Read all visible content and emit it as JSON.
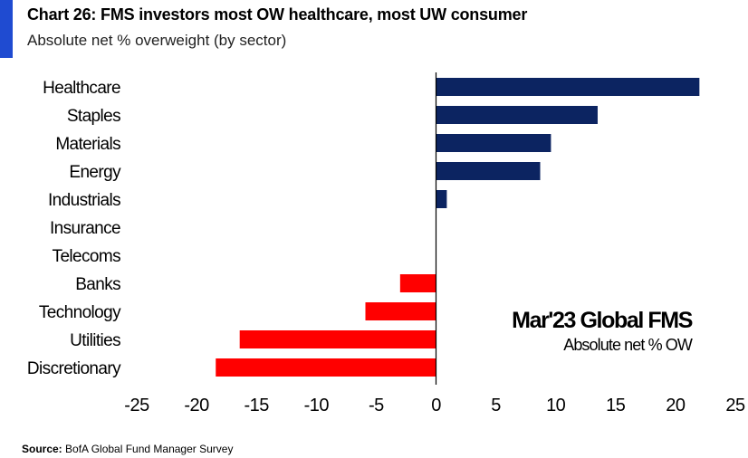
{
  "header": {
    "title": "Chart 26: FMS investors most OW healthcare, most UW consumer",
    "subtitle": "Absolute net % overweight (by sector)",
    "accent_color": "#1f4bd1"
  },
  "annotation": {
    "title": "Mar'23 Global FMS",
    "subtitle": "Absolute net % OW"
  },
  "source": {
    "label": "Source:",
    "text": " BofA Global Fund Manager Survey"
  },
  "chart_data": {
    "type": "bar",
    "orientation": "horizontal",
    "categories": [
      "Healthcare",
      "Staples",
      "Materials",
      "Energy",
      "Industrials",
      "Insurance",
      "Telecoms",
      "Banks",
      "Technology",
      "Utilities",
      "Discretionary"
    ],
    "values": [
      22,
      13.5,
      9.6,
      8.7,
      0.9,
      0,
      0,
      -3,
      -5.9,
      -16.4,
      -18.4
    ],
    "xlim": [
      -25,
      25
    ],
    "xticks": [
      -25,
      -20,
      -15,
      -10,
      -5,
      0,
      5,
      10,
      15,
      20,
      25
    ],
    "colors": {
      "positive": "#0c2461",
      "negative": "#ff0000"
    },
    "grid": false,
    "xlabel": "",
    "ylabel": ""
  }
}
